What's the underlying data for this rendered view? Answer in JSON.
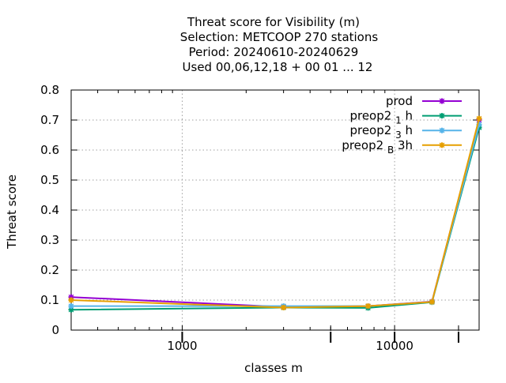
{
  "chart_data": {
    "type": "line",
    "title_lines": [
      "Threat score  for Visibility (m)",
      "Selection: METCOOP    270 stations",
      "Period: 20240610-20240629",
      "Used  00,06,12,18 + 00 01 ... 12"
    ],
    "xlabel": "classes m",
    "ylabel": "Threat score",
    "x_scale": "log",
    "xlim": [
      300,
      25000
    ],
    "ylim": [
      0,
      0.8
    ],
    "x_tick_labels": [
      "1000",
      "10000"
    ],
    "x_tick_values": [
      1000,
      10000
    ],
    "x_major_marks": [
      1000,
      5000,
      10000,
      20000
    ],
    "y_tick_labels": [
      "0",
      "0.1",
      "0.2",
      "0.3",
      "0.4",
      "0.5",
      "0.6",
      "0.7",
      "0.8"
    ],
    "y_tick_values": [
      0,
      0.1,
      0.2,
      0.3,
      0.4,
      0.5,
      0.6,
      0.7,
      0.8
    ],
    "grid": true,
    "legend_position": "top-right",
    "x": [
      300,
      3000,
      7500,
      15000,
      25000
    ],
    "series": [
      {
        "name": "prod",
        "name_base": "prod",
        "name_sub": "",
        "name_suffix": "",
        "color": "#9400d3",
        "values": [
          0.11,
          0.077,
          0.08,
          0.095,
          0.7
        ]
      },
      {
        "name": "preop2 1 h",
        "name_base": "preop2 ",
        "name_sub": "1",
        "name_suffix": " h",
        "color": "#009e73",
        "values": [
          0.068,
          0.075,
          0.074,
          0.093,
          0.675
        ]
      },
      {
        "name": "preop2 3 h",
        "name_base": "preop2 ",
        "name_sub": "3",
        "name_suffix": " h",
        "color": "#56b4e9",
        "values": [
          0.08,
          0.08,
          0.08,
          0.094,
          0.685
        ]
      },
      {
        "name": "preop2 B 3h",
        "name_base": "preop2 ",
        "name_sub": "B",
        "name_suffix": " 3h",
        "color": "#e69f00",
        "values": [
          0.1,
          0.075,
          0.08,
          0.094,
          0.705
        ]
      }
    ]
  }
}
